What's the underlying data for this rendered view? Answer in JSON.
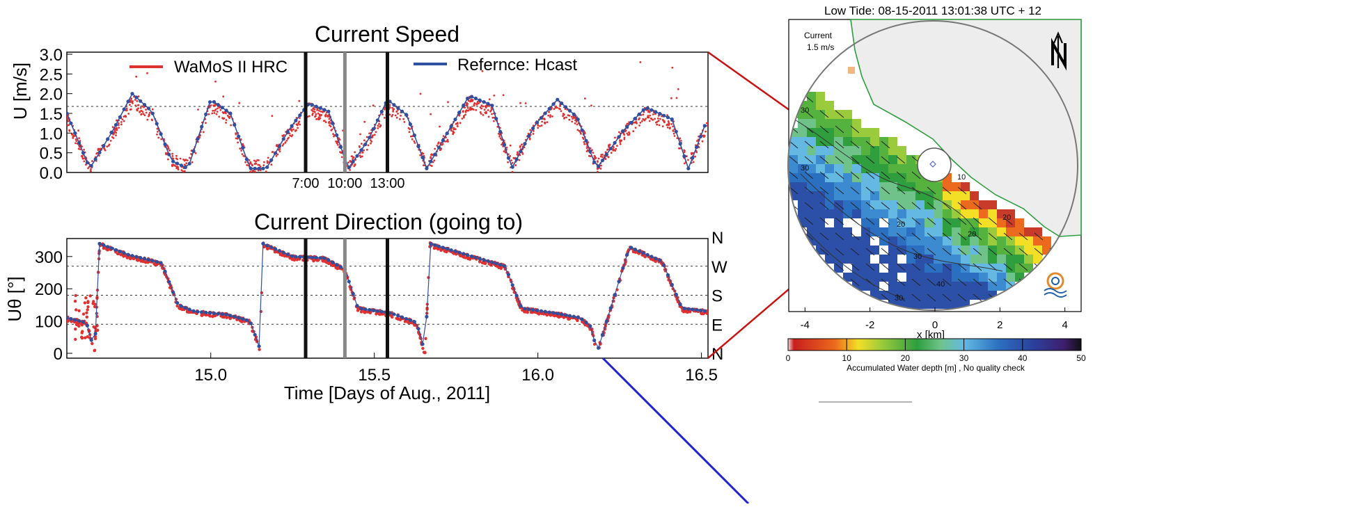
{
  "chart_data": [
    {
      "type": "line",
      "title": "Current Speed",
      "xlabel": "",
      "ylabel": "U [m/s]",
      "yticks": [
        "0.0",
        "0.5",
        "1.0",
        "1.5",
        "2.0",
        "2.5",
        "3.0"
      ],
      "ylim": [
        0,
        3.0
      ],
      "xlim": [
        14.56,
        16.52
      ],
      "grid": "dotted horizontal at 1.6",
      "legend": "top",
      "series": [
        {
          "name": "WaMoS II HRC",
          "color": "#e03030",
          "style": "scatter"
        },
        {
          "name": "Refernce: Hcast",
          "color": "#2f4f9f",
          "style": "line+markers",
          "x": [
            14.56,
            14.63,
            14.7,
            14.76,
            14.82,
            14.88,
            14.93,
            15.0,
            15.06,
            15.12,
            15.17,
            15.24,
            15.3,
            15.36,
            15.42,
            15.48,
            15.54,
            15.6,
            15.66,
            15.73,
            15.79,
            15.86,
            15.92,
            15.99,
            16.06,
            16.12,
            16.18,
            16.26,
            16.33,
            16.41,
            16.46,
            16.52
          ],
          "y": [
            1.5,
            0.1,
            1.05,
            2.0,
            1.55,
            0.3,
            0.1,
            1.85,
            1.5,
            0.1,
            0.1,
            1.1,
            1.75,
            1.55,
            0.1,
            0.8,
            1.85,
            1.45,
            0.1,
            1.1,
            1.95,
            1.7,
            0.1,
            1.2,
            1.85,
            1.4,
            0.1,
            1.05,
            1.65,
            1.35,
            0.1,
            1.4
          ]
        }
      ],
      "vlines": [
        {
          "x": 15.29,
          "label": "7:00",
          "color": "#111111"
        },
        {
          "x": 15.41,
          "label": "10:00",
          "color": "#888888"
        },
        {
          "x": 15.54,
          "label": "13:00",
          "color": "#111111"
        }
      ]
    },
    {
      "type": "line",
      "title": "Current Direction (going to)",
      "xlabel": "Time [Days of Aug., 2011]",
      "ylabel": "Uθ [°]",
      "xticks": [
        "15.0",
        "15.5",
        "16.0",
        "16.5"
      ],
      "xtick_values": [
        15.0,
        15.5,
        16.0,
        16.5
      ],
      "yticks": [
        "0",
        "100",
        "200",
        "300"
      ],
      "ylim": [
        0,
        360
      ],
      "xlim": [
        14.56,
        16.52
      ],
      "right_axis_labels": [
        "N",
        "W",
        "S",
        "E",
        "N"
      ],
      "right_axis_values": [
        360,
        270,
        180,
        90,
        0
      ],
      "grid": "dotted horizontal at 90, 180, 270",
      "series": [
        {
          "name": "WaMoS II HRC",
          "color": "#e03030",
          "style": "scatter"
        },
        {
          "name": "Refernce: Hcast",
          "color": "#2f4f9f",
          "style": "line+markers",
          "x": [
            14.56,
            14.62,
            14.645,
            14.66,
            14.75,
            14.85,
            14.9,
            14.95,
            15.05,
            15.12,
            15.15,
            15.16,
            15.25,
            15.35,
            15.41,
            15.45,
            15.55,
            15.63,
            15.655,
            15.67,
            15.8,
            15.9,
            15.95,
            16.05,
            16.13,
            16.165,
            16.18,
            16.28,
            16.38,
            16.44,
            16.52
          ],
          "y": [
            110,
            95,
            5,
            340,
            305,
            280,
            150,
            130,
            120,
            100,
            15,
            340,
            300,
            295,
            260,
            140,
            125,
            95,
            0,
            340,
            300,
            270,
            140,
            125,
            110,
            80,
            0,
            330,
            285,
            140,
            130
          ]
        }
      ]
    },
    {
      "type": "heatmap",
      "title": "Low Tide: 08-15-2011 13:01:38 UTC +  12",
      "xlabel": "x [km]",
      "xticks": [
        "-4",
        "-2",
        "0",
        "2",
        "4"
      ],
      "xtick_values": [
        -4,
        -2,
        0,
        2,
        4
      ],
      "xlim": [
        -4.5,
        4.5
      ],
      "current_legend": [
        "Current",
        "1.5 m/s"
      ],
      "contour_labels": [
        "30",
        "30",
        "20",
        "20",
        "20",
        "10",
        "40",
        "30",
        "30"
      ],
      "colorbar": {
        "label": "Accumulated Water depth [m] , No quality check",
        "ticks": [
          "0",
          "10",
          "20",
          "30",
          "40",
          "50"
        ],
        "tick_values": [
          0,
          10,
          20,
          30,
          40,
          50
        ],
        "range": [
          0,
          50
        ]
      },
      "logo_text": "OceanWaves"
    }
  ],
  "colors": {
    "wamos": "#e03030",
    "hcast": "#2f4f9f",
    "vline_dark": "#111111",
    "vline_grey": "#888888",
    "land": "#ededed",
    "coast": "#2e9e3e",
    "connector_red": "#cc1111",
    "connector_blue": "#2222cc"
  }
}
